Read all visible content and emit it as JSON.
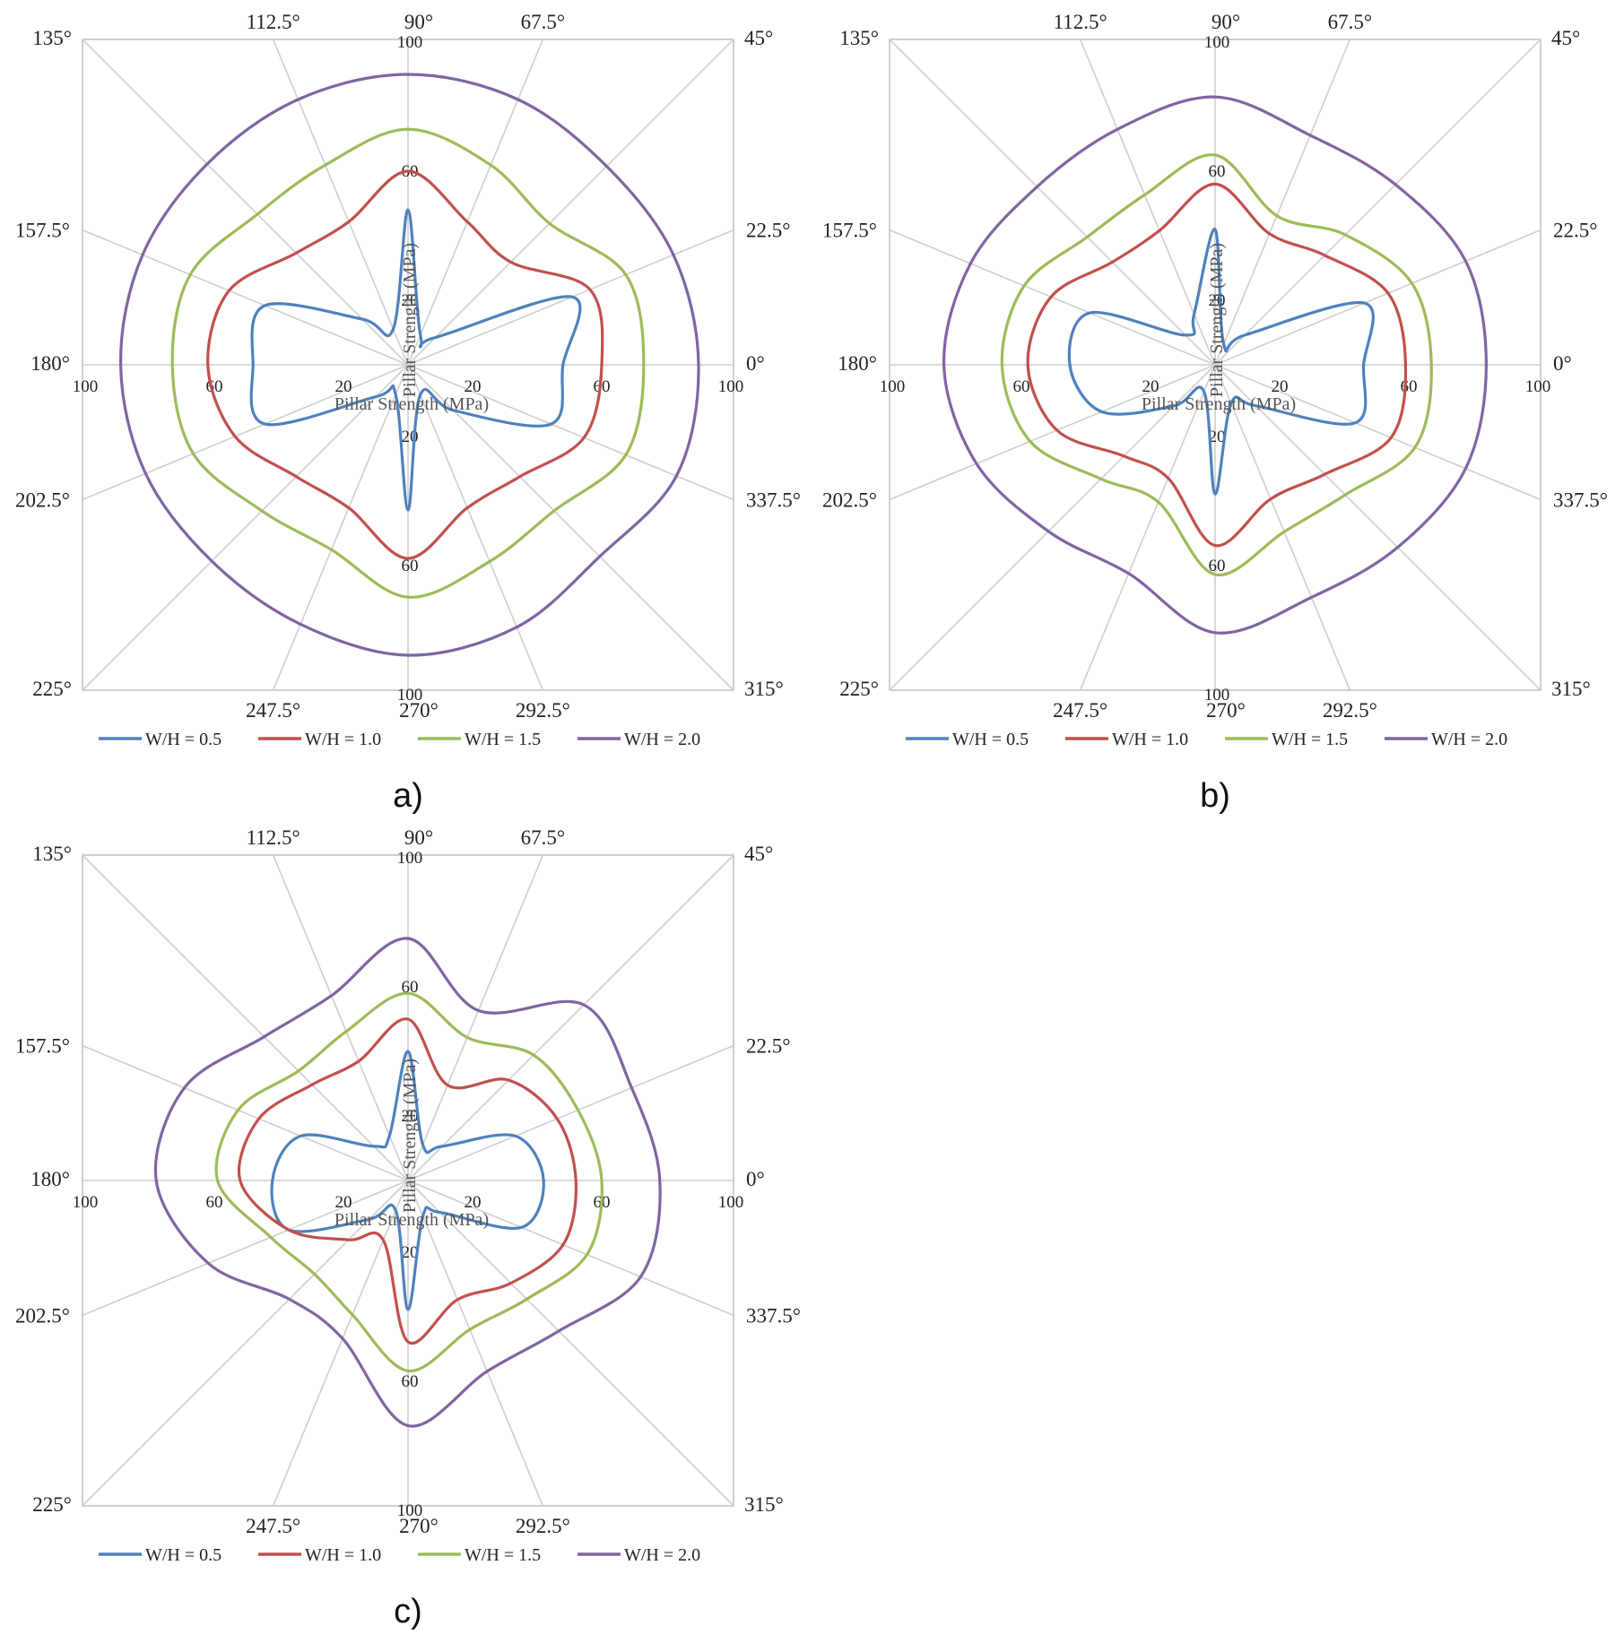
{
  "angles_deg": [
    0,
    22.5,
    45,
    67.5,
    90,
    112.5,
    135,
    157.5,
    180,
    202.5,
    225,
    247.5,
    270,
    292.5,
    315,
    337.5
  ],
  "colors": {
    "W/H = 0.5": "#4f81bd",
    "W/H = 1.0": "#c0504d",
    "W/H = 1.5": "#9bbb59",
    "W/H = 2.0": "#8064a2",
    "grid": "#cfcfcf",
    "frame": "#bfbfbf"
  },
  "chart_data": [
    {
      "panel_label": "a)",
      "type": "radar",
      "axis_title_radial": "Pillar Strength (MPa)",
      "axis_title_horizontal": "Pillar Strength (MPa)",
      "radial_range": [
        0,
        100
      ],
      "radial_ticks": [
        20,
        60,
        100
      ],
      "angle_labels": [
        "0°",
        "22.5°",
        "45°",
        "67.5°",
        "90°",
        "112.5°",
        "135°",
        "157.5°",
        "180°",
        "202.5°",
        "225°",
        "247.5°",
        "270°",
        "292.5°",
        "315°",
        "337.5°"
      ],
      "legend": [
        "W/H = 0.5",
        "W/H = 1.0",
        "W/H = 1.5",
        "W/H = 2.0"
      ],
      "legend_position": "bottom",
      "grid": true,
      "series": [
        {
          "name": "W/H = 0.5",
          "values": [
            48,
            55,
            12,
            10,
            48,
            12,
            20,
            48,
            48,
            48,
            14,
            10,
            45,
            10,
            20,
            48
          ]
        },
        {
          "name": "W/H = 1.0",
          "values": [
            60,
            61,
            45,
            48,
            60,
            48,
            49,
            60,
            62,
            58,
            49,
            48,
            60,
            48,
            49,
            59
          ]
        },
        {
          "name": "W/H = 1.5",
          "values": [
            73,
            73,
            62,
            67,
            73,
            67,
            66,
            73,
            73,
            72,
            64,
            62,
            72,
            66,
            64,
            73
          ]
        },
        {
          "name": "W/H = 2.0",
          "values": [
            90,
            89,
            87,
            89,
            90,
            89,
            88,
            89,
            89,
            88,
            86,
            87,
            90,
            88,
            84,
            90
          ]
        }
      ]
    },
    {
      "panel_label": "b)",
      "type": "radar",
      "axis_title_radial": "Pillar Strength (MPa)",
      "axis_title_horizontal": "Pillar Strength (MPa)",
      "radial_range": [
        0,
        100
      ],
      "radial_ticks": [
        20,
        60,
        100
      ],
      "angle_labels": [
        "0°",
        "22.5°",
        "45°",
        "67.5°",
        "90°",
        "112.5°",
        "135°",
        "157.5°",
        "180°",
        "202.5°",
        "225°",
        "247.5°",
        "270°",
        "292.5°",
        "315°",
        "337.5°"
      ],
      "legend": [
        "W/H = 0.5",
        "W/H = 1.0",
        "W/H = 1.5",
        "W/H = 2.0"
      ],
      "legend_position": "bottom",
      "grid": true,
      "series": [
        {
          "name": "W/H = 0.5",
          "values": [
            46,
            50,
            13,
            7,
            42,
            17,
            13,
            42,
            45,
            38,
            18,
            9,
            40,
            13,
            18,
            47
          ]
        },
        {
          "name": "W/H = 1.0",
          "values": [
            59,
            58,
            48,
            44,
            56,
            45,
            45,
            55,
            58,
            53,
            40,
            38,
            56,
            45,
            48,
            59
          ]
        },
        {
          "name": "W/H = 1.5",
          "values": [
            67,
            66,
            57,
            50,
            65,
            57,
            56,
            64,
            66,
            62,
            50,
            46,
            65,
            56,
            57,
            67
          ]
        },
        {
          "name": "W/H = 2.0",
          "values": [
            84,
            84,
            79,
            77,
            83,
            79,
            78,
            82,
            84,
            80,
            73,
            70,
            83,
            78,
            80,
            84
          ]
        }
      ]
    },
    {
      "panel_label": "c)",
      "type": "radar",
      "axis_title_radial": "Pillar Strength (MPa)",
      "axis_title_horizontal": "Pillar Strength (MPa)",
      "radial_range": [
        0,
        100
      ],
      "radial_ticks": [
        20,
        60,
        100
      ],
      "angle_labels": [
        "0°",
        "22.5°",
        "45°",
        "67.5°",
        "90°",
        "112.5°",
        "135°",
        "157.5°",
        "180°",
        "202.5°",
        "225°",
        "247.5°",
        "270°",
        "292.5°",
        "315°",
        "337.5°"
      ],
      "legend": [
        "W/H = 0.5",
        "W/H = 1.0",
        "W/H = 1.5",
        "W/H = 2.0"
      ],
      "legend_position": "bottom",
      "grid": true,
      "series": [
        {
          "name": "W/H = 0.5",
          "values": [
            42,
            36,
            15,
            12,
            40,
            15,
            15,
            36,
            42,
            40,
            17,
            10,
            40,
            12,
            14,
            38
          ]
        },
        {
          "name": "W/H = 1.0",
          "values": [
            52,
            50,
            44,
            32,
            50,
            40,
            42,
            50,
            52,
            40,
            26,
            20,
            50,
            40,
            45,
            52
          ]
        },
        {
          "name": "W/H = 1.5",
          "values": [
            60,
            57,
            55,
            48,
            58,
            50,
            48,
            57,
            59,
            46,
            41,
            45,
            59,
            50,
            52,
            60
          ]
        },
        {
          "name": "W/H = 2.0",
          "values": [
            78,
            75,
            77,
            57,
            75,
            62,
            63,
            75,
            78,
            67,
            52,
            53,
            76,
            64,
            66,
            78
          ]
        }
      ]
    }
  ]
}
